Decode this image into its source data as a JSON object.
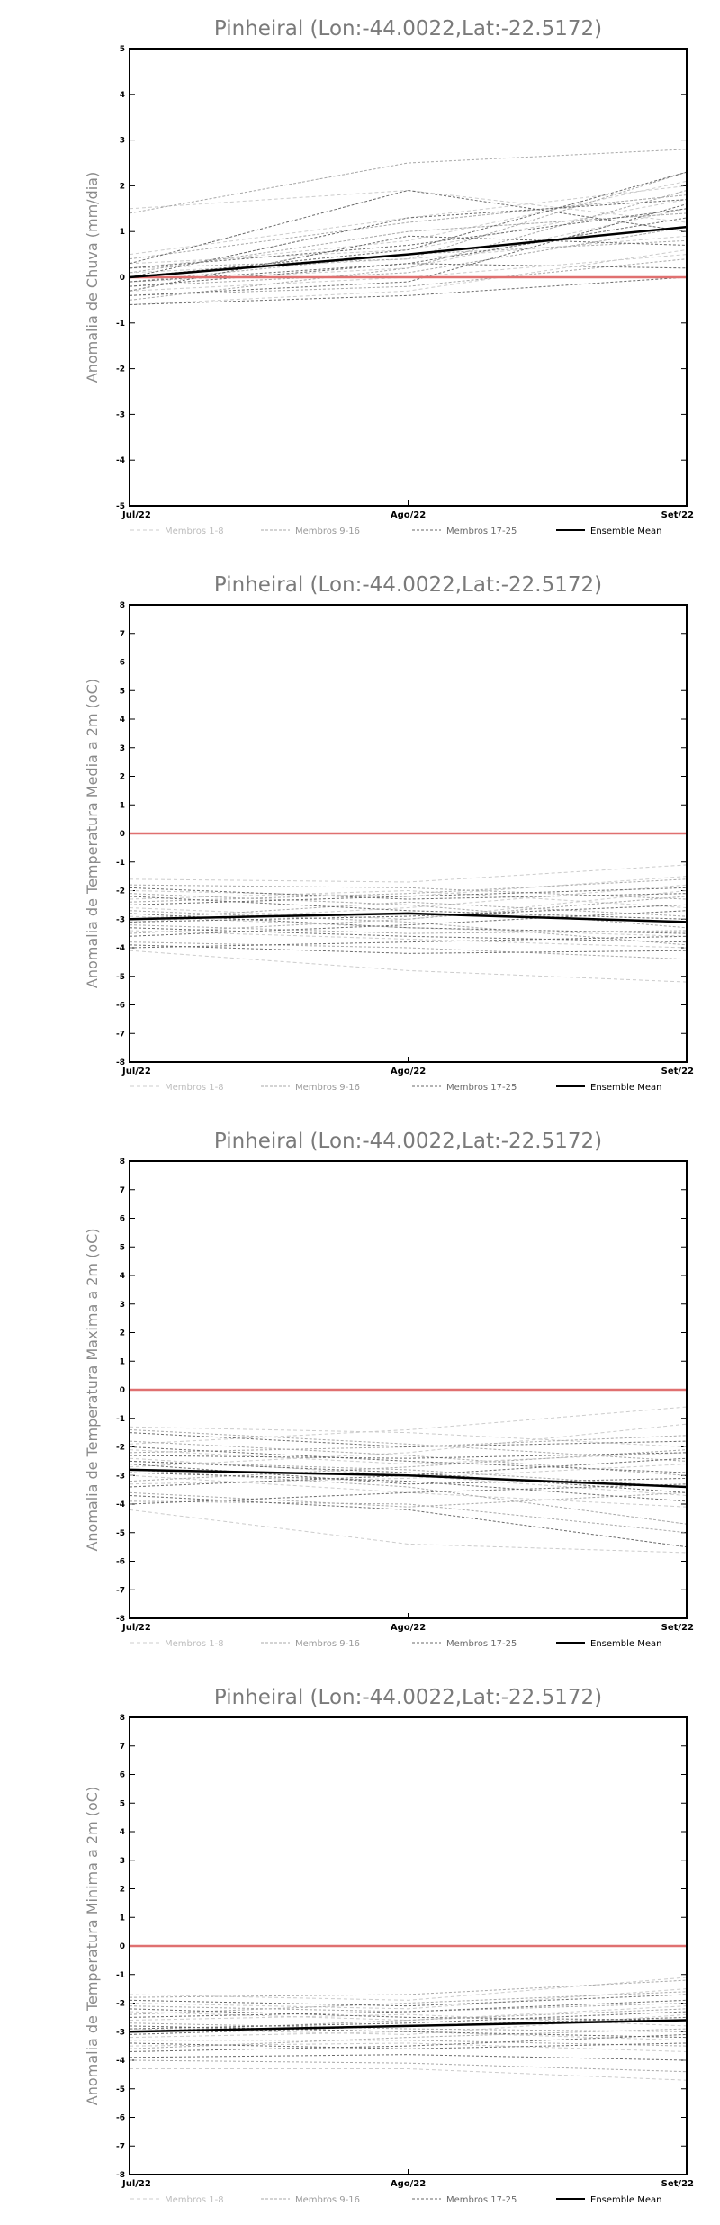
{
  "chart_data": [
    {
      "type": "line",
      "title": "Pinheiral (Lon:-44.0022,Lat:-22.5172)",
      "ylabel": "Anomalia de Chuva (mm/dia)",
      "x": [
        "Jul/22",
        "Ago/22",
        "Set/22"
      ],
      "ylim": [
        -5,
        5
      ],
      "yticks": [
        -5,
        -4,
        -3,
        -2,
        -1,
        0,
        1,
        2,
        3,
        4,
        5
      ],
      "reference_line": 0,
      "legend": [
        "Membros 1-8",
        "Membros 9-16",
        "Membros 17-25",
        "Ensemble Mean"
      ],
      "ensemble_mean": [
        0.0,
        0.5,
        1.1
      ],
      "members": [
        [
          1.5,
          1.9,
          1.2
        ],
        [
          0.5,
          1.3,
          2.0
        ],
        [
          0.3,
          0.6,
          1.7
        ],
        [
          0.2,
          0.8,
          2.1
        ],
        [
          0.1,
          0.4,
          0.9
        ],
        [
          -0.1,
          0.2,
          1.5
        ],
        [
          -0.3,
          0.0,
          0.5
        ],
        [
          -0.6,
          -0.3,
          0.6
        ],
        [
          1.4,
          2.5,
          2.8
        ],
        [
          0.4,
          1.2,
          1.8
        ],
        [
          0.2,
          0.4,
          2.3
        ],
        [
          0.1,
          1.0,
          1.4
        ],
        [
          -0.1,
          0.5,
          0.8
        ],
        [
          -0.2,
          0.1,
          1.1
        ],
        [
          -0.4,
          -0.2,
          0.4
        ],
        [
          -0.5,
          0.2,
          1.9
        ],
        [
          0.3,
          1.9,
          1.0
        ],
        [
          0.0,
          0.6,
          2.3
        ],
        [
          -0.2,
          0.3,
          1.3
        ],
        [
          -0.3,
          0.9,
          0.7
        ],
        [
          -0.4,
          -0.1,
          1.6
        ],
        [
          -0.1,
          0.3,
          0.2
        ],
        [
          0.2,
          0.7,
          1.5
        ],
        [
          -0.6,
          -0.4,
          0.0
        ],
        [
          0.0,
          1.3,
          1.7
        ]
      ]
    },
    {
      "type": "line",
      "title": "Pinheiral (Lon:-44.0022,Lat:-22.5172)",
      "ylabel": "Anomalia de Temperatura Media a 2m (oC)",
      "x": [
        "Jul/22",
        "Ago/22",
        "Set/22"
      ],
      "ylim": [
        -8,
        8
      ],
      "yticks": [
        -8,
        -7,
        -6,
        -5,
        -4,
        -3,
        -2,
        -1,
        0,
        1,
        2,
        3,
        4,
        5,
        6,
        7,
        8
      ],
      "reference_line": 0,
      "legend": [
        "Membros 1-8",
        "Membros 9-16",
        "Membros 17-25",
        "Ensemble Mean"
      ],
      "ensemble_mean": [
        -3.0,
        -2.8,
        -3.1
      ],
      "members": [
        [
          -1.6,
          -1.7,
          -1.1
        ],
        [
          -2.0,
          -2.2,
          -1.5
        ],
        [
          -2.3,
          -2.0,
          -2.6
        ],
        [
          -2.6,
          -3.0,
          -2.0
        ],
        [
          -2.9,
          -3.3,
          -3.6
        ],
        [
          -3.1,
          -2.6,
          -1.8
        ],
        [
          -3.4,
          -3.7,
          -4.0
        ],
        [
          -4.1,
          -4.8,
          -5.2
        ],
        [
          -1.8,
          -1.9,
          -2.3
        ],
        [
          -2.1,
          -2.5,
          -3.3
        ],
        [
          -2.4,
          -2.1,
          -1.6
        ],
        [
          -2.7,
          -3.1,
          -3.9
        ],
        [
          -3.0,
          -2.4,
          -2.9
        ],
        [
          -3.2,
          -3.5,
          -3.4
        ],
        [
          -3.5,
          -3.0,
          -2.2
        ],
        [
          -3.8,
          -4.0,
          -4.4
        ],
        [
          -1.9,
          -2.3,
          -2.1
        ],
        [
          -2.2,
          -2.7,
          -3.0
        ],
        [
          -2.5,
          -2.2,
          -1.9
        ],
        [
          -2.8,
          -3.3,
          -3.5
        ],
        [
          -3.1,
          -2.9,
          -2.5
        ],
        [
          -3.3,
          -3.6,
          -3.8
        ],
        [
          -3.6,
          -3.2,
          -2.7
        ],
        [
          -3.9,
          -4.2,
          -4.1
        ],
        [
          -4.0,
          -3.8,
          -3.6
        ]
      ]
    },
    {
      "type": "line",
      "title": "Pinheiral (Lon:-44.0022,Lat:-22.5172)",
      "ylabel": "Anomalia de Temperatura Maxima a 2m (oC)",
      "x": [
        "Jul/22",
        "Ago/22",
        "Set/22"
      ],
      "ylim": [
        -8,
        8
      ],
      "yticks": [
        -8,
        -7,
        -6,
        -5,
        -4,
        -3,
        -2,
        -1,
        0,
        1,
        2,
        3,
        4,
        5,
        6,
        7,
        8
      ],
      "reference_line": 0,
      "legend": [
        "Membros 1-8",
        "Membros 9-16",
        "Membros 17-25",
        "Ensemble Mean"
      ],
      "ensemble_mean": [
        -2.8,
        -3.0,
        -3.4
      ],
      "members": [
        [
          -1.3,
          -1.5,
          -2.0
        ],
        [
          -1.9,
          -1.4,
          -0.6
        ],
        [
          -2.1,
          -2.6,
          -2.2
        ],
        [
          -2.4,
          -3.0,
          -3.7
        ],
        [
          -2.7,
          -2.2,
          -1.2
        ],
        [
          -3.0,
          -3.6,
          -4.1
        ],
        [
          -3.3,
          -3.1,
          -2.6
        ],
        [
          -4.2,
          -5.4,
          -5.7
        ],
        [
          -1.4,
          -1.9,
          -2.5
        ],
        [
          -1.8,
          -2.3,
          -3.0
        ],
        [
          -2.2,
          -2.0,
          -1.6
        ],
        [
          -2.5,
          -2.8,
          -3.4
        ],
        [
          -2.8,
          -3.4,
          -4.7
        ],
        [
          -3.2,
          -2.7,
          -2.1
        ],
        [
          -3.6,
          -4.1,
          -3.6
        ],
        [
          -3.9,
          -4.0,
          -5.0
        ],
        [
          -1.5,
          -2.0,
          -1.8
        ],
        [
          -2.0,
          -2.5,
          -2.9
        ],
        [
          -2.3,
          -2.4,
          -2.2
        ],
        [
          -2.6,
          -3.3,
          -3.1
        ],
        [
          -2.9,
          -3.2,
          -3.9
        ],
        [
          -3.4,
          -3.0,
          -2.4
        ],
        [
          -3.7,
          -4.2,
          -5.5
        ],
        [
          -4.0,
          -3.6,
          -3.3
        ],
        [
          -2.5,
          -2.9,
          -3.6
        ]
      ]
    },
    {
      "type": "line",
      "title": "Pinheiral (Lon:-44.0022,Lat:-22.5172)",
      "ylabel": "Anomalia de Temperatura Minima a 2m (oC)",
      "x": [
        "Jul/22",
        "Ago/22",
        "Set/22"
      ],
      "ylim": [
        -8,
        8
      ],
      "yticks": [
        -8,
        -7,
        -6,
        -5,
        -4,
        -3,
        -2,
        -1,
        0,
        1,
        2,
        3,
        4,
        5,
        6,
        7,
        8
      ],
      "reference_line": 0,
      "legend": [
        "Membros 1-8",
        "Membros 9-16",
        "Membros 17-25",
        "Ensemble Mean"
      ],
      "ensemble_mean": [
        -3.0,
        -2.8,
        -2.6
      ],
      "members": [
        [
          -1.7,
          -1.9,
          -1.1
        ],
        [
          -2.0,
          -2.2,
          -1.5
        ],
        [
          -2.3,
          -2.6,
          -2.1
        ],
        [
          -2.6,
          -2.4,
          -2.8
        ],
        [
          -2.9,
          -3.1,
          -2.4
        ],
        [
          -3.2,
          -3.0,
          -3.3
        ],
        [
          -3.5,
          -3.4,
          -3.7
        ],
        [
          -4.3,
          -4.3,
          -4.7
        ],
        [
          -1.8,
          -1.7,
          -1.2
        ],
        [
          -2.1,
          -2.3,
          -2.0
        ],
        [
          -2.4,
          -2.0,
          -1.6
        ],
        [
          -2.7,
          -2.9,
          -3.0
        ],
        [
          -3.0,
          -2.6,
          -2.2
        ],
        [
          -3.3,
          -3.3,
          -3.5
        ],
        [
          -3.6,
          -3.2,
          -2.9
        ],
        [
          -4.0,
          -4.1,
          -4.4
        ],
        [
          -1.9,
          -2.1,
          -1.7
        ],
        [
          -2.2,
          -2.5,
          -2.6
        ],
        [
          -2.5,
          -2.3,
          -1.9
        ],
        [
          -2.8,
          -3.0,
          -3.2
        ],
        [
          -3.1,
          -2.8,
          -2.5
        ],
        [
          -3.4,
          -3.6,
          -3.4
        ],
        [
          -3.7,
          -3.5,
          -3.1
        ],
        [
          -3.9,
          -3.8,
          -4.0
        ],
        [
          -2.9,
          -2.7,
          -2.3
        ]
      ]
    }
  ]
}
